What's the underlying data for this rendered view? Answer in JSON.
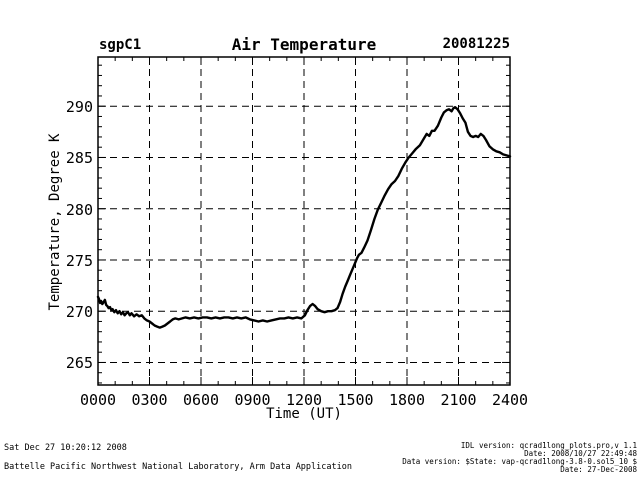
{
  "header": {
    "site": "sgpC1",
    "title": "Air Temperature",
    "date": "20081225"
  },
  "footer_left": {
    "timestamp": "Sat Dec 27 10:20:12 2008",
    "organization": "Battelle Pacific Northwest National Laboratory, Arm Data Application"
  },
  "footer_right": {
    "idl_version": "IDL version: qcrad1long_plots.pro,v 1.1",
    "build_date": "Date: 2008/10/27 22:49:48",
    "data_version": "Data version: $State: vap-qcrad1long-3.8-0.sol5_10 $",
    "plot_date": "Date: 27-Dec-2008"
  },
  "chart_data": {
    "type": "line",
    "title": "Air Temperature",
    "subtitle_left": "sgpC1",
    "subtitle_right": "20081225",
    "xlabel": "Time (UT)",
    "ylabel": "Temperature, Degree K",
    "xlim": [
      0,
      24
    ],
    "ylim": [
      262.8,
      294.8
    ],
    "x_major_ticks": [
      0,
      3,
      6,
      9,
      12,
      15,
      18,
      21,
      24
    ],
    "x_tick_labels": [
      "0000",
      "0300",
      "0600",
      "0900",
      "1200",
      "1500",
      "1800",
      "2100",
      "2400"
    ],
    "x_minor_step_hours": 1,
    "y_major_ticks": [
      265,
      270,
      275,
      280,
      285,
      290
    ],
    "y_tick_labels": [
      "265",
      "270",
      "275",
      "280",
      "285",
      "290"
    ],
    "y_minor_step": 1,
    "grid": "dashed-on-major-ticks",
    "legend": "none",
    "background_color": "#ffffff",
    "line_color": "#000000",
    "frame_color": "#000000",
    "series": [
      {
        "name": "air_temperature_degK",
        "x": [
          0.0,
          0.05,
          0.12,
          0.18,
          0.25,
          0.33,
          0.4,
          0.48,
          0.55,
          0.62,
          0.7,
          0.78,
          0.85,
          0.95,
          1.05,
          1.15,
          1.25,
          1.35,
          1.45,
          1.55,
          1.65,
          1.75,
          1.85,
          1.95,
          2.1,
          2.25,
          2.4,
          2.55,
          2.7,
          2.85,
          3.0,
          3.15,
          3.3,
          3.45,
          3.6,
          3.75,
          3.9,
          4.05,
          4.2,
          4.35,
          4.5,
          4.7,
          4.9,
          5.1,
          5.35,
          5.6,
          5.85,
          6.1,
          6.35,
          6.6,
          6.85,
          7.1,
          7.35,
          7.6,
          7.85,
          8.1,
          8.35,
          8.6,
          8.85,
          9.1,
          9.35,
          9.6,
          9.85,
          10.1,
          10.35,
          10.6,
          10.85,
          11.1,
          11.35,
          11.6,
          11.85,
          12.05,
          12.2,
          12.35,
          12.5,
          12.65,
          12.8,
          13.0,
          13.2,
          13.4,
          13.6,
          13.8,
          13.95,
          14.1,
          14.25,
          14.4,
          14.55,
          14.7,
          14.85,
          15.0,
          15.1,
          15.2,
          15.35,
          15.5,
          15.7,
          15.9,
          16.1,
          16.3,
          16.5,
          16.7,
          16.9,
          17.1,
          17.3,
          17.5,
          17.7,
          17.9,
          18.1,
          18.3,
          18.5,
          18.75,
          19.0,
          19.15,
          19.3,
          19.45,
          19.6,
          19.8,
          20.0,
          20.15,
          20.3,
          20.45,
          20.6,
          20.7,
          20.8,
          20.95,
          21.1,
          21.25,
          21.4,
          21.55,
          21.7,
          21.85,
          22.0,
          22.15,
          22.3,
          22.45,
          22.6,
          22.8,
          23.0,
          23.2,
          23.4,
          23.6,
          23.8,
          24.0
        ],
        "y": [
          271.4,
          271.2,
          270.8,
          271.0,
          270.7,
          270.9,
          271.1,
          270.6,
          270.5,
          270.3,
          270.4,
          270.1,
          270.2,
          269.9,
          270.1,
          269.8,
          270.0,
          269.7,
          269.9,
          269.6,
          269.8,
          269.9,
          269.6,
          269.8,
          269.5,
          269.7,
          269.5,
          269.6,
          269.3,
          269.1,
          269.0,
          268.8,
          268.6,
          268.5,
          268.4,
          268.5,
          268.6,
          268.8,
          269.0,
          269.2,
          269.3,
          269.2,
          269.3,
          269.4,
          269.3,
          269.4,
          269.3,
          269.4,
          269.4,
          269.3,
          269.4,
          269.3,
          269.4,
          269.4,
          269.3,
          269.4,
          269.3,
          269.4,
          269.2,
          269.1,
          269.0,
          269.1,
          269.0,
          269.1,
          269.2,
          269.3,
          269.3,
          269.4,
          269.3,
          269.4,
          269.3,
          269.6,
          270.1,
          270.5,
          270.7,
          270.5,
          270.2,
          270.0,
          269.9,
          270.0,
          270.0,
          270.1,
          270.3,
          270.9,
          271.7,
          272.4,
          273.0,
          273.6,
          274.2,
          274.8,
          275.2,
          275.5,
          275.7,
          276.2,
          276.9,
          277.9,
          279.0,
          279.9,
          280.6,
          281.3,
          281.9,
          282.4,
          282.7,
          283.2,
          283.9,
          284.5,
          285.0,
          285.4,
          285.8,
          286.2,
          286.9,
          287.3,
          287.1,
          287.6,
          287.6,
          288.1,
          288.9,
          289.4,
          289.6,
          289.7,
          289.5,
          289.8,
          289.9,
          289.7,
          289.3,
          288.8,
          288.4,
          287.5,
          287.1,
          287.0,
          287.1,
          287.0,
          287.3,
          287.1,
          286.7,
          286.1,
          285.8,
          285.6,
          285.5,
          285.3,
          285.2,
          285.1
        ]
      }
    ]
  }
}
